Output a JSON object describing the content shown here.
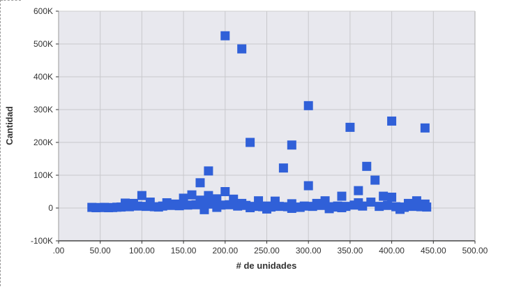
{
  "chart_data": {
    "type": "scatter",
    "xlabel": "# de unidades",
    "ylabel": "Cantidad",
    "xlim": [
      0,
      500
    ],
    "ylim": [
      -100000,
      600000
    ],
    "x_ticks": [
      ".00",
      "50.00",
      "100.00",
      "150.00",
      "200.00",
      "250.00",
      "300.00",
      "350.00",
      "400.00",
      "450.00",
      "500.00"
    ],
    "y_ticks": [
      "-100K",
      "0",
      "100K",
      "200K",
      "300K",
      "400K",
      "500K",
      "600K"
    ],
    "grid": true,
    "marker": "square",
    "colors": {
      "marker": "#3060d8",
      "plot_bg": "#e8e8ee",
      "grid": "#c8c8cc"
    },
    "points": [
      [
        200,
        525000
      ],
      [
        220,
        485000
      ],
      [
        300,
        312000
      ],
      [
        400,
        265000
      ],
      [
        440,
        244000
      ],
      [
        350,
        246000
      ],
      [
        230,
        200000
      ],
      [
        280,
        192000
      ],
      [
        370,
        127000
      ],
      [
        270,
        122000
      ],
      [
        180,
        113000
      ],
      [
        380,
        85000
      ],
      [
        170,
        77000
      ],
      [
        300,
        68000
      ],
      [
        360,
        53000
      ],
      [
        200,
        50000
      ],
      [
        160,
        40000
      ],
      [
        100,
        38000
      ],
      [
        180,
        38000
      ],
      [
        340,
        36000
      ],
      [
        390,
        36000
      ],
      [
        400,
        33000
      ],
      [
        150,
        30000
      ],
      [
        190,
        28000
      ],
      [
        210,
        27000
      ],
      [
        170,
        24000
      ],
      [
        240,
        22000
      ],
      [
        260,
        21000
      ],
      [
        320,
        22000
      ],
      [
        430,
        22000
      ],
      [
        110,
        18000
      ],
      [
        130,
        16000
      ],
      [
        80,
        15000
      ],
      [
        90,
        14000
      ],
      [
        140,
        12000
      ],
      [
        180,
        15000
      ],
      [
        220,
        14000
      ],
      [
        280,
        13000
      ],
      [
        310,
        14000
      ],
      [
        360,
        16000
      ],
      [
        375,
        18000
      ],
      [
        420,
        14000
      ],
      [
        440,
        12000
      ],
      [
        40,
        2000
      ],
      [
        45,
        1000
      ],
      [
        50,
        1500
      ],
      [
        55,
        2000
      ],
      [
        60,
        1000
      ],
      [
        65,
        1500
      ],
      [
        70,
        2500
      ],
      [
        75,
        3000
      ],
      [
        85,
        4000
      ],
      [
        95,
        6000
      ],
      [
        105,
        5000
      ],
      [
        115,
        4000
      ],
      [
        120,
        3000
      ],
      [
        125,
        6000
      ],
      [
        135,
        8000
      ],
      [
        145,
        7000
      ],
      [
        155,
        9000
      ],
      [
        165,
        10000
      ],
      [
        175,
        8000
      ],
      [
        185,
        12000
      ],
      [
        195,
        9000
      ],
      [
        205,
        10000
      ],
      [
        215,
        6000
      ],
      [
        225,
        8000
      ],
      [
        235,
        5000
      ],
      [
        245,
        4000
      ],
      [
        250,
        6000
      ],
      [
        255,
        3000
      ],
      [
        265,
        5000
      ],
      [
        275,
        4000
      ],
      [
        285,
        3000
      ],
      [
        290,
        2000
      ],
      [
        295,
        6000
      ],
      [
        305,
        5000
      ],
      [
        315,
        8000
      ],
      [
        325,
        4000
      ],
      [
        330,
        3000
      ],
      [
        335,
        6000
      ],
      [
        345,
        5000
      ],
      [
        355,
        9000
      ],
      [
        365,
        6000
      ],
      [
        385,
        5000
      ],
      [
        395,
        8000
      ],
      [
        405,
        4000
      ],
      [
        410,
        3000
      ],
      [
        415,
        2000
      ],
      [
        425,
        5000
      ],
      [
        435,
        4000
      ],
      [
        442,
        3000
      ],
      [
        175,
        -5000
      ],
      [
        250,
        -3000
      ],
      [
        325,
        -2000
      ],
      [
        410,
        -4000
      ],
      [
        280,
        -1000
      ],
      [
        190,
        2000
      ],
      [
        230,
        1000
      ],
      [
        340,
        1000
      ]
    ]
  }
}
